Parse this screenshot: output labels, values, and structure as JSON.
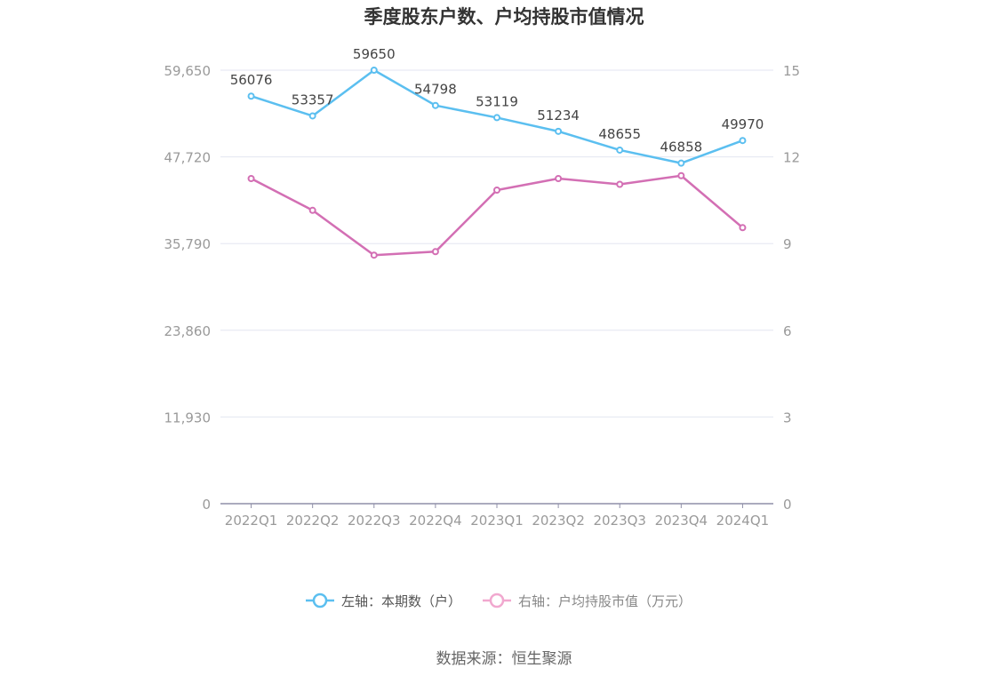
{
  "chart_data": {
    "type": "line",
    "title": "季度股东户数、户均持股市值情况",
    "source": "数据来源：恒生聚源",
    "categories": [
      "2022Q1",
      "2022Q2",
      "2022Q3",
      "2022Q4",
      "2023Q1",
      "2023Q2",
      "2023Q3",
      "2023Q4",
      "2024Q1"
    ],
    "left_axis": {
      "ticks": [
        "0",
        "11,930",
        "23,860",
        "35,790",
        "47,720",
        "59,650"
      ],
      "ylim": [
        0,
        59650
      ]
    },
    "right_axis": {
      "ticks": [
        "0",
        "3",
        "6",
        "9",
        "12",
        "15"
      ],
      "ylim": [
        0,
        15
      ]
    },
    "series": [
      {
        "name": "左轴：本期数（户）",
        "axis": "left",
        "color": "#5bbff0",
        "values": [
          56076,
          53357,
          59650,
          54798,
          53119,
          51234,
          48655,
          46858,
          49970
        ],
        "labels": [
          "56076",
          "53357",
          "59650",
          "54798",
          "53119",
          "51234",
          "48655",
          "46858",
          "49970"
        ]
      },
      {
        "name": "右轴：户均持股市值（万元）",
        "axis": "right",
        "color": "#d36fb4",
        "legend_color": "#f1a8cf",
        "values": [
          11.25,
          10.15,
          8.6,
          8.72,
          10.85,
          11.25,
          11.05,
          11.35,
          9.55
        ]
      }
    ],
    "grid": true,
    "legend_position": "bottom"
  }
}
